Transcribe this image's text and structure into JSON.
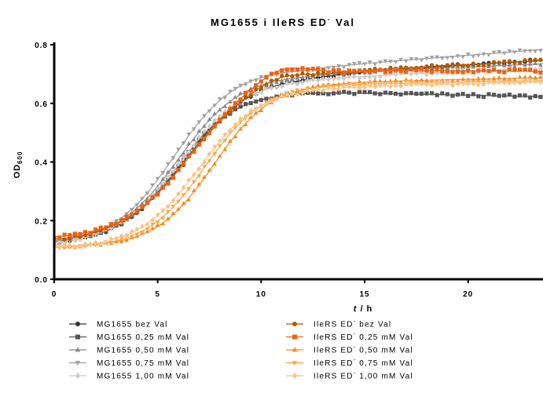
{
  "chart_data": {
    "type": "scatter",
    "title": "MG1655 i IleRS ED",
    "title_sup": "-",
    "title_end": " Val",
    "ylabel_main": "OD",
    "ylabel_sub": "600",
    "xlabel_main": "t",
    "xlabel_unit": " / h",
    "xlim": [
      0,
      24
    ],
    "ylim": [
      0,
      0.8
    ],
    "xticks": [
      0,
      5,
      10,
      15,
      20
    ],
    "xtick_labels": [
      "0",
      "5",
      "10",
      "15",
      "20"
    ],
    "yticks": [
      0,
      0.2,
      0.4,
      0.6,
      0.8
    ],
    "ytick_labels": [
      "0.0",
      "0.2",
      "0.4",
      "0.6",
      "0.8"
    ],
    "grid": false,
    "legend_position": "bottom",
    "series": [
      {
        "name": "MG1655 bez Val",
        "name_parts": [
          "MG1655 bez Val",
          "",
          ""
        ],
        "color": "#333333",
        "marker": "circle",
        "y0": 0.115,
        "amp": 0.58,
        "mid": 6.3,
        "k": 0.62,
        "late": 0.0045,
        "bump": 0.0,
        "bumpT": 11
      },
      {
        "name": "MG1655 0,25 mM Val",
        "name_parts": [
          "MG1655 0,25 mM Val",
          "",
          ""
        ],
        "color": "#555555",
        "marker": "square",
        "y0": 0.12,
        "amp": 0.52,
        "mid": 5.9,
        "k": 0.7,
        "late": -0.0015,
        "bump": 0.0,
        "bumpT": 11
      },
      {
        "name": "MG1655 0,50 mM Val",
        "name_parts": [
          "MG1655 0,50 mM Val",
          "",
          ""
        ],
        "color": "#888888",
        "marker": "triangle-up",
        "y0": 0.12,
        "amp": 0.58,
        "mid": 6.0,
        "k": 0.66,
        "late": 0.003,
        "bump": 0.0,
        "bumpT": 11
      },
      {
        "name": "MG1655 0,75 mM Val",
        "name_parts": [
          "MG1655 0,75 mM Val",
          "",
          ""
        ],
        "color": "#a0a0a0",
        "marker": "triangle-down",
        "y0": 0.12,
        "amp": 0.6,
        "mid": 5.8,
        "k": 0.68,
        "late": 0.0055,
        "bump": 0.0,
        "bumpT": 11
      },
      {
        "name": "MG1655 1,00 mM Val",
        "name_parts": [
          "MG1655 1,00 mM Val",
          "",
          ""
        ],
        "color": "#cccccc",
        "marker": "diamond",
        "y0": 0.115,
        "amp": 0.57,
        "mid": 6.1,
        "k": 0.64,
        "late": 0.003,
        "bump": 0.0,
        "bumpT": 11
      },
      {
        "name": "IleRS ED- bez Val",
        "name_parts": [
          "IleRS ED",
          "-",
          " bez Val"
        ],
        "color": "#b35a00",
        "marker": "circle",
        "y0": 0.125,
        "amp": 0.58,
        "mid": 6.5,
        "k": 0.6,
        "late": 0.0035,
        "bump": 0.02,
        "bumpT": 11
      },
      {
        "name": "IleRS ED- 0,25 mM Val",
        "name_parts": [
          "IleRS ED",
          "-",
          " 0,25 mM Val"
        ],
        "color": "#f06010",
        "marker": "square",
        "y0": 0.135,
        "amp": 0.58,
        "mid": 6.6,
        "k": 0.62,
        "late": -0.0005,
        "bump": 0.035,
        "bumpT": 11
      },
      {
        "name": "IleRS ED- 0,50 mM Val",
        "name_parts": [
          "IleRS ED",
          "-",
          " 0,50 mM Val"
        ],
        "color": "#f58a1f",
        "marker": "triangle-up",
        "y0": 0.11,
        "amp": 0.56,
        "mid": 7.7,
        "k": 0.72,
        "late": 0.0015,
        "bump": 0.0,
        "bumpT": 11
      },
      {
        "name": "IleRS ED- 0,75 mM Val",
        "name_parts": [
          "IleRS ED",
          "-",
          " 0,75 mM Val"
        ],
        "color": "#f8a848",
        "marker": "triangle-down",
        "y0": 0.105,
        "amp": 0.56,
        "mid": 7.3,
        "k": 0.7,
        "late": 0.001,
        "bump": 0.0,
        "bumpT": 11
      },
      {
        "name": "IleRS ED- 1,00 mM Val",
        "name_parts": [
          "IleRS ED",
          "-",
          " 1,00 mM Val"
        ],
        "color": "#f9c48a",
        "marker": "diamond",
        "y0": 0.105,
        "amp": 0.55,
        "mid": 7.0,
        "k": 0.68,
        "late": 0.0015,
        "bump": 0.0,
        "bumpT": 11
      }
    ]
  }
}
